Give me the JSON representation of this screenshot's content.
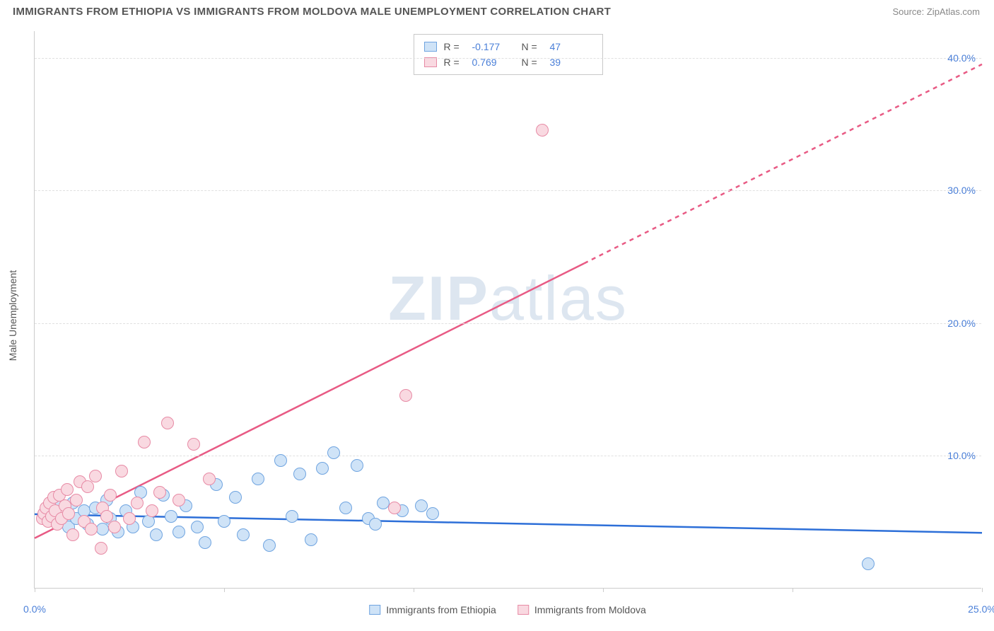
{
  "title": "IMMIGRANTS FROM ETHIOPIA VS IMMIGRANTS FROM MOLDOVA MALE UNEMPLOYMENT CORRELATION CHART",
  "source_label": "Source: ",
  "source_name": "ZipAtlas.com",
  "watermark": "ZIPatlas",
  "y_axis_label": "Male Unemployment",
  "chart": {
    "type": "scatter",
    "xlim": [
      0,
      25
    ],
    "ylim": [
      0,
      42
    ],
    "x_ticks": [
      0,
      5,
      10,
      15,
      20,
      25
    ],
    "x_tick_labels": {
      "0": "0.0%",
      "25": "25.0%"
    },
    "y_ticks": [
      10,
      20,
      30,
      40
    ],
    "y_tick_labels": {
      "10": "10.0%",
      "20": "20.0%",
      "30": "30.0%",
      "40": "40.0%"
    },
    "background_color": "#ffffff",
    "grid_color": "#e0e0e0",
    "axis_color": "#cccccc",
    "tick_text_color": "#4a7fd8",
    "label_text_color": "#555555",
    "marker_radius": 9,
    "marker_stroke_width": 1.5,
    "series": [
      {
        "name": "Immigrants from Ethiopia",
        "fill_color": "#cfe3f7",
        "stroke_color": "#6fa4e0",
        "line_color": "#2d6fd8",
        "line_width": 2.5,
        "correlation_R": "-0.177",
        "correlation_N": "47",
        "regression": {
          "x1": 0,
          "y1": 5.6,
          "x2": 25,
          "y2": 4.2,
          "dash": null
        },
        "points": [
          [
            0.3,
            5.2
          ],
          [
            0.4,
            6.0
          ],
          [
            0.5,
            5.4
          ],
          [
            0.6,
            6.2
          ],
          [
            0.8,
            5.0
          ],
          [
            0.9,
            4.6
          ],
          [
            1.0,
            6.4
          ],
          [
            1.1,
            5.2
          ],
          [
            1.3,
            5.8
          ],
          [
            1.4,
            4.8
          ],
          [
            1.6,
            6.0
          ],
          [
            1.8,
            4.4
          ],
          [
            1.9,
            6.6
          ],
          [
            2.0,
            5.2
          ],
          [
            2.2,
            4.2
          ],
          [
            2.4,
            5.8
          ],
          [
            2.6,
            4.6
          ],
          [
            2.8,
            7.2
          ],
          [
            3.0,
            5.0
          ],
          [
            3.2,
            4.0
          ],
          [
            3.4,
            7.0
          ],
          [
            3.6,
            5.4
          ],
          [
            3.8,
            4.2
          ],
          [
            4.0,
            6.2
          ],
          [
            4.3,
            4.6
          ],
          [
            4.5,
            3.4
          ],
          [
            4.8,
            7.8
          ],
          [
            5.0,
            5.0
          ],
          [
            5.3,
            6.8
          ],
          [
            5.5,
            4.0
          ],
          [
            5.9,
            8.2
          ],
          [
            6.2,
            3.2
          ],
          [
            6.5,
            9.6
          ],
          [
            6.8,
            5.4
          ],
          [
            7.0,
            8.6
          ],
          [
            7.3,
            3.6
          ],
          [
            7.6,
            9.0
          ],
          [
            7.9,
            10.2
          ],
          [
            8.2,
            6.0
          ],
          [
            8.5,
            9.2
          ],
          [
            8.8,
            5.2
          ],
          [
            9.2,
            6.4
          ],
          [
            9.7,
            5.8
          ],
          [
            10.2,
            6.2
          ],
          [
            10.5,
            5.6
          ],
          [
            22.0,
            1.8
          ],
          [
            9.0,
            4.8
          ]
        ]
      },
      {
        "name": "Immigrants from Moldova",
        "fill_color": "#f9d9e1",
        "stroke_color": "#e78aa5",
        "line_color": "#e85a84",
        "line_width": 2.5,
        "correlation_R": "0.769",
        "correlation_N": "39",
        "regression": {
          "x1": 0,
          "y1": 3.8,
          "x2": 14.5,
          "y2": 24.5,
          "dash": null
        },
        "regression_ext": {
          "x1": 14.5,
          "y1": 24.5,
          "x2": 25,
          "y2": 39.5,
          "dash": "6,6"
        },
        "points": [
          [
            0.2,
            5.2
          ],
          [
            0.25,
            5.6
          ],
          [
            0.3,
            6.0
          ],
          [
            0.35,
            5.0
          ],
          [
            0.4,
            6.4
          ],
          [
            0.45,
            5.4
          ],
          [
            0.5,
            6.8
          ],
          [
            0.55,
            5.8
          ],
          [
            0.6,
            4.8
          ],
          [
            0.65,
            7.0
          ],
          [
            0.7,
            5.2
          ],
          [
            0.8,
            6.2
          ],
          [
            0.85,
            7.4
          ],
          [
            0.9,
            5.6
          ],
          [
            1.0,
            4.0
          ],
          [
            1.1,
            6.6
          ],
          [
            1.2,
            8.0
          ],
          [
            1.3,
            5.0
          ],
          [
            1.4,
            7.6
          ],
          [
            1.5,
            4.4
          ],
          [
            1.6,
            8.4
          ],
          [
            1.75,
            3.0
          ],
          [
            1.8,
            6.0
          ],
          [
            1.9,
            5.4
          ],
          [
            2.0,
            7.0
          ],
          [
            2.1,
            4.6
          ],
          [
            2.3,
            8.8
          ],
          [
            2.5,
            5.2
          ],
          [
            2.7,
            6.4
          ],
          [
            2.9,
            11.0
          ],
          [
            3.1,
            5.8
          ],
          [
            3.3,
            7.2
          ],
          [
            3.5,
            12.4
          ],
          [
            3.8,
            6.6
          ],
          [
            4.2,
            10.8
          ],
          [
            4.6,
            8.2
          ],
          [
            9.8,
            14.5
          ],
          [
            9.5,
            6.0
          ],
          [
            13.4,
            34.5
          ]
        ]
      }
    ]
  },
  "legend_top": {
    "R_label": "R =",
    "N_label": "N ="
  },
  "legend_bottom_labels": [
    "Immigrants from Ethiopia",
    "Immigrants from Moldova"
  ]
}
